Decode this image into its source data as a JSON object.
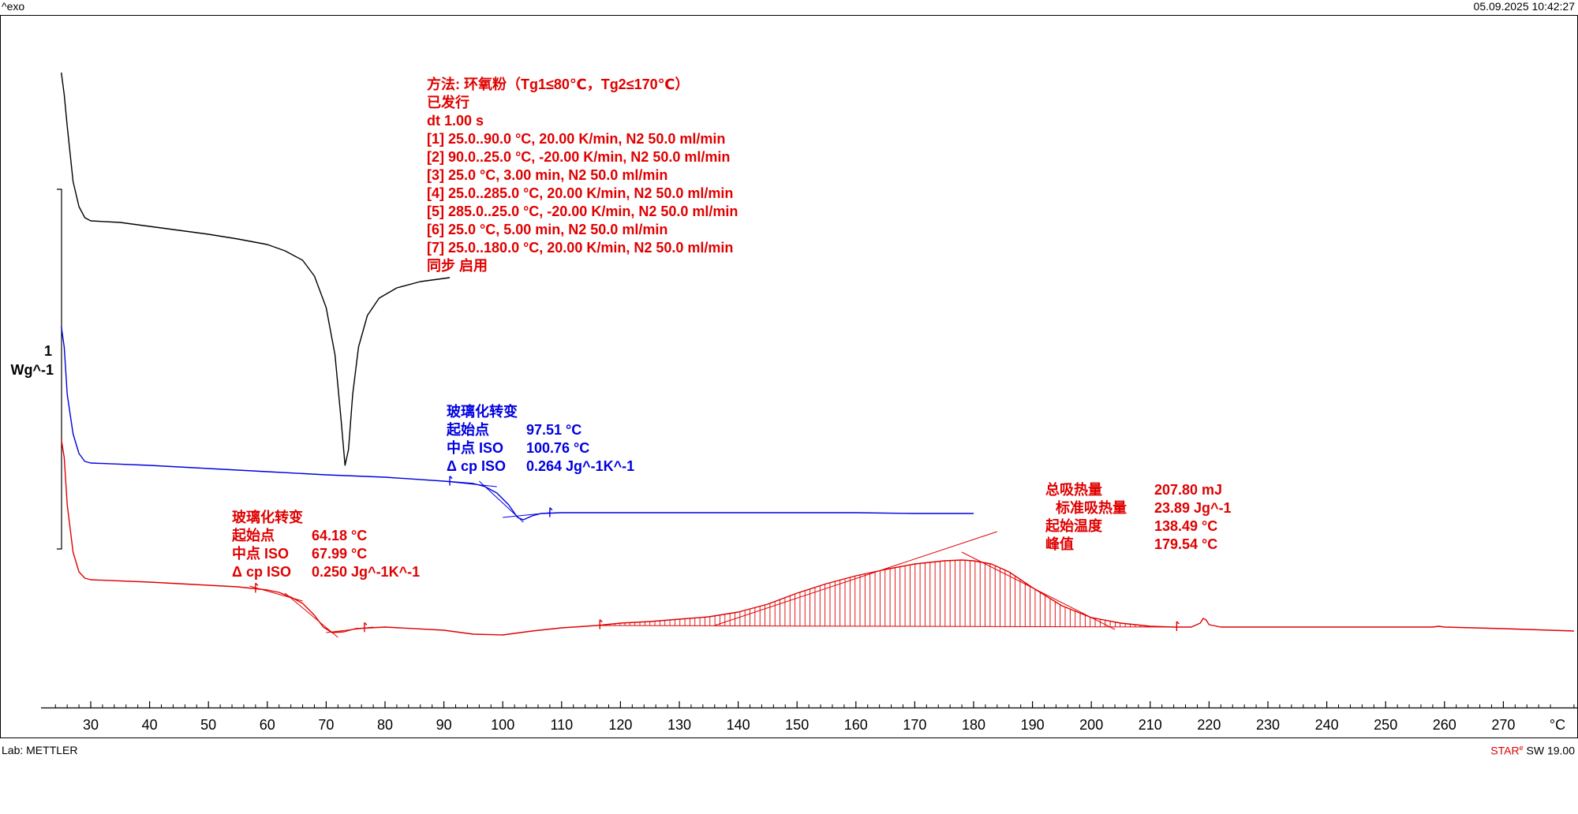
{
  "header": {
    "top_left": "^exo",
    "top_right": "05.09.2025 10:42:27",
    "bottom_left": "Lab: METTLER",
    "bottom_right_brand": "STAR",
    "bottom_right_mark": "e",
    "bottom_right_version": "SW 19.00"
  },
  "method_block": {
    "lines": [
      "方法: 环氧粉（Tg1≤80℃，Tg2≤170℃）",
      "已发行",
      "dt 1.00 s",
      "[1] 25.0..90.0 °C, 20.00 K/min, N2 50.0 ml/min",
      "[2] 90.0..25.0 °C, -20.00 K/min, N2 50.0 ml/min",
      "[3] 25.0 °C, 3.00 min, N2 50.0 ml/min",
      "[4] 25.0..285.0 °C, 20.00 K/min, N2 50.0 ml/min",
      "[5] 285.0..25.0 °C, -20.00 K/min, N2 50.0 ml/min",
      "[6] 25.0 °C, 5.00 min, N2 50.0 ml/min",
      "[7] 25.0..180.0 °C, 20.00 K/min, N2 50.0 ml/min",
      "同步 启用"
    ]
  },
  "annotations": {
    "blue_tg": {
      "title": "玻璃化转变",
      "rows": [
        {
          "label": "起始点",
          "value": "97.51 °C"
        },
        {
          "label": "中点 ISO",
          "value": "100.76 °C"
        },
        {
          "label": "Δ cp ISO",
          "value": "0.264 Jg^-1K^-1"
        }
      ]
    },
    "red_tg": {
      "title": "玻璃化转变",
      "rows": [
        {
          "label": "起始点",
          "value": "64.18 °C"
        },
        {
          "label": "中点 ISO",
          "value": "67.99 °C"
        },
        {
          "label": "Δ cp ISO",
          "value": "0.250 Jg^-1K^-1"
        }
      ]
    },
    "red_peak": {
      "rows": [
        {
          "label": "总吸热量",
          "value": "207.80 mJ"
        },
        {
          "label": "标准吸热量",
          "value": "23.89 Jg^-1"
        },
        {
          "label": "起始温度",
          "value": "138.49 °C"
        },
        {
          "label": "峰值",
          "value": "179.54 °C"
        }
      ]
    }
  },
  "chart_data": {
    "type": "line",
    "xlabel": "°C",
    "ylabel": "Wg^-1",
    "ylabel_scale": "1",
    "xlim": [
      22,
      282
    ],
    "x_ticks": [
      30,
      40,
      50,
      60,
      70,
      80,
      90,
      100,
      110,
      120,
      130,
      140,
      150,
      160,
      170,
      180,
      190,
      200,
      210,
      220,
      230,
      240,
      250,
      260,
      270
    ],
    "colors": {
      "black": "#000000",
      "blue": "#0000e0",
      "red": "#e00000"
    },
    "series": [
      {
        "color": "black",
        "points": [
          [
            25,
            92
          ],
          [
            25.5,
            120
          ],
          [
            26,
            160
          ],
          [
            27,
            230
          ],
          [
            28,
            262
          ],
          [
            29,
            276
          ],
          [
            30,
            280
          ],
          [
            35,
            282
          ],
          [
            40,
            287
          ],
          [
            45,
            292
          ],
          [
            50,
            297
          ],
          [
            55,
            303
          ],
          [
            60,
            310
          ],
          [
            63,
            318
          ],
          [
            66,
            330
          ],
          [
            68,
            350
          ],
          [
            70,
            390
          ],
          [
            71.5,
            450
          ],
          [
            72.5,
            530
          ],
          [
            73.2,
            590
          ],
          [
            73.8,
            570
          ],
          [
            74.5,
            500
          ],
          [
            75.5,
            440
          ],
          [
            77,
            400
          ],
          [
            79,
            378
          ],
          [
            82,
            365
          ],
          [
            86,
            357
          ],
          [
            90,
            353
          ],
          [
            91,
            352
          ]
        ]
      },
      {
        "color": "blue",
        "points": [
          [
            25,
            414
          ],
          [
            25.5,
            440
          ],
          [
            26,
            500
          ],
          [
            27,
            550
          ],
          [
            28,
            575
          ],
          [
            29,
            585
          ],
          [
            30,
            587
          ],
          [
            40,
            590
          ],
          [
            50,
            594
          ],
          [
            60,
            598
          ],
          [
            70,
            602
          ],
          [
            80,
            605
          ],
          [
            90,
            610
          ],
          [
            95,
            613
          ],
          [
            97,
            617
          ],
          [
            99,
            625
          ],
          [
            101,
            640
          ],
          [
            102.5,
            656
          ],
          [
            103.5,
            659
          ],
          [
            105,
            654
          ],
          [
            106.5,
            651
          ],
          [
            110,
            650
          ],
          [
            120,
            650
          ],
          [
            140,
            650
          ],
          [
            160,
            650
          ],
          [
            170,
            651
          ],
          [
            180,
            651
          ]
        ]
      },
      {
        "color": "red",
        "points": [
          [
            25,
            557
          ],
          [
            25.5,
            580
          ],
          [
            26,
            640
          ],
          [
            27,
            700
          ],
          [
            28,
            725
          ],
          [
            29,
            733
          ],
          [
            30,
            735
          ],
          [
            40,
            738
          ],
          [
            50,
            742
          ],
          [
            55,
            744
          ],
          [
            60,
            748
          ],
          [
            62,
            751
          ],
          [
            64,
            757
          ],
          [
            66,
            765
          ],
          [
            68,
            780
          ],
          [
            69.5,
            795
          ],
          [
            71,
            802
          ],
          [
            73,
            801
          ],
          [
            75,
            797
          ],
          [
            80,
            795
          ],
          [
            90,
            799
          ],
          [
            95,
            804
          ],
          [
            100,
            805
          ],
          [
            105,
            800
          ],
          [
            110,
            796
          ],
          [
            116,
            793
          ],
          [
            120,
            790
          ],
          [
            125,
            788
          ],
          [
            130,
            785
          ],
          [
            135,
            782
          ],
          [
            140,
            776
          ],
          [
            145,
            766
          ],
          [
            150,
            752
          ],
          [
            155,
            740
          ],
          [
            160,
            730
          ],
          [
            165,
            722
          ],
          [
            170,
            715
          ],
          [
            175,
            711
          ],
          [
            178,
            710
          ],
          [
            180,
            711
          ],
          [
            183,
            715
          ],
          [
            186,
            725
          ],
          [
            190,
            745
          ],
          [
            195,
            768
          ],
          [
            200,
            783
          ],
          [
            205,
            790
          ],
          [
            210,
            794
          ],
          [
            214,
            795
          ],
          [
            217,
            795
          ],
          [
            218.5,
            790
          ],
          [
            219,
            784
          ],
          [
            219.5,
            786
          ],
          [
            220,
            792
          ],
          [
            222,
            795
          ],
          [
            230,
            795
          ],
          [
            240,
            795
          ],
          [
            250,
            795
          ],
          [
            258,
            795
          ],
          [
            259,
            794
          ],
          [
            260,
            795
          ],
          [
            270,
            797
          ],
          [
            282,
            800
          ]
        ]
      }
    ],
    "fill_region": {
      "series": "red",
      "x_start": 116.5,
      "x_end": 214.5
    },
    "construction_lines": [
      {
        "color": "blue",
        "points": [
          [
            90,
            610
          ],
          [
            99,
            617
          ]
        ]
      },
      {
        "color": "blue",
        "points": [
          [
            96,
            610
          ],
          [
            103.5,
            662
          ]
        ]
      },
      {
        "color": "blue",
        "points": [
          [
            100,
            656
          ],
          [
            108,
            650
          ]
        ]
      },
      {
        "color": "red",
        "points": [
          [
            57,
            743
          ],
          [
            66,
            762
          ]
        ]
      },
      {
        "color": "red",
        "points": [
          [
            63,
            752
          ],
          [
            72,
            808
          ]
        ]
      },
      {
        "color": "red",
        "points": [
          [
            70,
            802
          ],
          [
            78,
            795
          ]
        ]
      },
      {
        "color": "red",
        "points": [
          [
            136,
            793
          ],
          [
            184,
            674
          ]
        ]
      },
      {
        "color": "red",
        "points": [
          [
            178,
            700
          ],
          [
            204,
            798
          ]
        ]
      },
      {
        "color": "red",
        "points": [
          [
            116,
            793
          ],
          [
            215,
            795
          ]
        ]
      }
    ]
  }
}
